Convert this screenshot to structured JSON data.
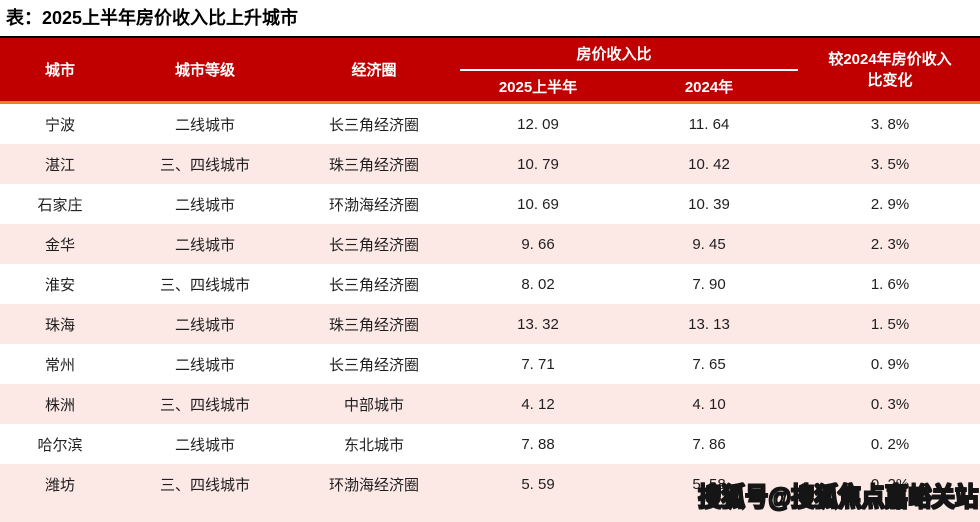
{
  "title": "表：2025上半年房价收入比上升城市",
  "watermark": "搜狐号@搜狐焦点嘉峪关站",
  "colors": {
    "header_bg": "#c00000",
    "accent_line": "#ee7c2b",
    "alt_row_bg": "#fce8e5",
    "top_border": "#000000",
    "header_text": "#ffffff",
    "body_text": "#1f1f1f"
  },
  "table": {
    "columns": {
      "city": "城市",
      "tier": "城市等级",
      "zone": "经济圈",
      "ratio_group": "房价收入比",
      "h1_2025": "2025上半年",
      "y2024": "2024年",
      "change_line1": "较2024年房价收入",
      "change_line2": "比变化"
    },
    "rows": [
      {
        "city": "宁波",
        "tier": "二线城市",
        "zone": "长三角经济圈",
        "h1_2025": "12. 09",
        "y2024": "11. 64",
        "change": "3. 8%"
      },
      {
        "city": "湛江",
        "tier": "三、四线城市",
        "zone": "珠三角经济圈",
        "h1_2025": "10. 79",
        "y2024": "10. 42",
        "change": "3. 5%"
      },
      {
        "city": "石家庄",
        "tier": "二线城市",
        "zone": "环渤海经济圈",
        "h1_2025": "10. 69",
        "y2024": "10. 39",
        "change": "2. 9%"
      },
      {
        "city": "金华",
        "tier": "二线城市",
        "zone": "长三角经济圈",
        "h1_2025": "9. 66",
        "y2024": "9. 45",
        "change": "2. 3%"
      },
      {
        "city": "淮安",
        "tier": "三、四线城市",
        "zone": "长三角经济圈",
        "h1_2025": "8. 02",
        "y2024": "7. 90",
        "change": "1. 6%"
      },
      {
        "city": "珠海",
        "tier": "二线城市",
        "zone": "珠三角经济圈",
        "h1_2025": "13. 32",
        "y2024": "13. 13",
        "change": "1. 5%"
      },
      {
        "city": "常州",
        "tier": "二线城市",
        "zone": "长三角经济圈",
        "h1_2025": "7. 71",
        "y2024": "7. 65",
        "change": "0. 9%"
      },
      {
        "city": "株洲",
        "tier": "三、四线城市",
        "zone": "中部城市",
        "h1_2025": "4. 12",
        "y2024": "4. 10",
        "change": "0. 3%"
      },
      {
        "city": "哈尔滨",
        "tier": "二线城市",
        "zone": "东北城市",
        "h1_2025": "7. 88",
        "y2024": "7. 86",
        "change": "0. 2%"
      },
      {
        "city": "潍坊",
        "tier": "三、四线城市",
        "zone": "环渤海经济圈",
        "h1_2025": "5. 59",
        "y2024": "5. 58",
        "change": "0. 2%"
      }
    ]
  },
  "chart_data": {
    "type": "table",
    "title": "表：2025上半年房价收入比上升城市",
    "columns": [
      "城市",
      "城市等级",
      "经济圈",
      "房价收入比 2025上半年",
      "房价收入比 2024年",
      "较2024年房价收入比变化"
    ],
    "rows": [
      [
        "宁波",
        "二线城市",
        "长三角经济圈",
        12.09,
        11.64,
        "3.8%"
      ],
      [
        "湛江",
        "三、四线城市",
        "珠三角经济圈",
        10.79,
        10.42,
        "3.5%"
      ],
      [
        "石家庄",
        "二线城市",
        "环渤海经济圈",
        10.69,
        10.39,
        "2.9%"
      ],
      [
        "金华",
        "二线城市",
        "长三角经济圈",
        9.66,
        9.45,
        "2.3%"
      ],
      [
        "淮安",
        "三、四线城市",
        "长三角经济圈",
        8.02,
        7.9,
        "1.6%"
      ],
      [
        "珠海",
        "二线城市",
        "珠三角经济圈",
        13.32,
        13.13,
        "1.5%"
      ],
      [
        "常州",
        "二线城市",
        "长三角经济圈",
        7.71,
        7.65,
        "0.9%"
      ],
      [
        "株洲",
        "三、四线城市",
        "中部城市",
        4.12,
        4.1,
        "0.3%"
      ],
      [
        "哈尔滨",
        "二线城市",
        "东北城市",
        7.88,
        7.86,
        "0.2%"
      ],
      [
        "潍坊",
        "三、四线城市",
        "环渤海经济圈",
        5.59,
        5.58,
        "0.2%"
      ]
    ]
  }
}
